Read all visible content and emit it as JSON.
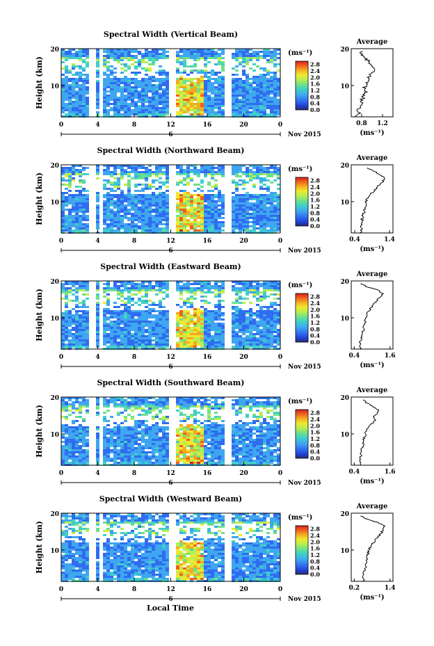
{
  "figure": {
    "bottom_xlabel": "Local Time"
  },
  "shared": {
    "ylabel": "Height (km)",
    "x_ticks": [
      "0",
      "4",
      "8",
      "12",
      "16",
      "20",
      "0"
    ],
    "y_ticks": [
      "20",
      "10"
    ],
    "date_day": "6",
    "date_label": "Nov 2015",
    "colorbar_unit": "(ms⁻¹)",
    "colorbar_ticks": [
      "2.8",
      "2.4",
      "2.0",
      "1.6",
      "1.2",
      "0.8",
      "0.4",
      "0.0"
    ],
    "avg_title": "Average",
    "avg_unit": "(ms⁻¹)",
    "avg_y_ticks": [
      "20",
      "10"
    ]
  },
  "colors": {
    "colormap": [
      "#2b2b6e",
      "#1f3fd0",
      "#2f6cf0",
      "#3fa6f0",
      "#3fd0c8",
      "#6fe08a",
      "#b8ee50",
      "#f0e830",
      "#f5a820",
      "#f06020",
      "#d02020"
    ]
  },
  "chart_data": [
    {
      "type": "heatmap",
      "title": "Spectral Width (Vertical Beam)",
      "x_range": [
        0,
        24
      ],
      "y_range": [
        1.5,
        20
      ],
      "color_range": [
        0.0,
        3.0
      ],
      "data_gaps_hours": [
        3.2,
        4.2,
        11.9,
        18.2
      ],
      "avg_x_ticks": [
        "0.8",
        "1.2"
      ],
      "avg_x_range": [
        0.6,
        1.4
      ],
      "average_profile": {
        "height_km": [
          1.5,
          2.5,
          3.5,
          4.5,
          5.5,
          6.5,
          7.5,
          8.5,
          9.5,
          10.5,
          11.5,
          12.5,
          13.5,
          14.5,
          15.5,
          16.5,
          17.5,
          18.5,
          19.5
        ],
        "value": [
          0.7,
          0.75,
          0.72,
          0.78,
          0.8,
          0.82,
          0.85,
          0.88,
          0.86,
          0.9,
          0.92,
          0.95,
          1.0,
          1.05,
          1.0,
          0.95,
          0.85,
          0.8,
          0.78
        ]
      }
    },
    {
      "type": "heatmap",
      "title": "Spectral Width (Northward Beam)",
      "x_range": [
        0,
        24
      ],
      "y_range": [
        1.5,
        20
      ],
      "color_range": [
        0.0,
        3.0
      ],
      "data_gaps_hours": [
        3.2,
        4.2,
        11.9,
        18.2
      ],
      "avg_x_ticks": [
        "0.4",
        "1.4"
      ],
      "avg_x_range": [
        0.3,
        1.5
      ],
      "average_profile": {
        "height_km": [
          1.5,
          2.5,
          3.5,
          4.5,
          5.5,
          6.5,
          7.5,
          8.5,
          9.5,
          10.5,
          11.5,
          12.5,
          13.5,
          14.5,
          15.5,
          16.5,
          17.5,
          18.5,
          19.5
        ],
        "value": [
          0.55,
          0.6,
          0.58,
          0.6,
          0.62,
          0.65,
          0.68,
          0.7,
          0.72,
          0.75,
          0.8,
          0.9,
          1.0,
          1.1,
          1.2,
          1.25,
          1.1,
          0.9,
          0.7
        ]
      }
    },
    {
      "type": "heatmap",
      "title": "Spectral Width (Eastward Beam)",
      "x_range": [
        0,
        24
      ],
      "y_range": [
        1.5,
        20
      ],
      "color_range": [
        0.0,
        3.0
      ],
      "data_gaps_hours": [
        3.2,
        4.2,
        11.9,
        18.2
      ],
      "avg_x_ticks": [
        "0.4",
        "1.6"
      ],
      "avg_x_range": [
        0.3,
        1.7
      ],
      "average_profile": {
        "height_km": [
          1.5,
          2.5,
          3.5,
          4.5,
          5.5,
          6.5,
          7.5,
          8.5,
          9.5,
          10.5,
          11.5,
          12.5,
          13.5,
          14.5,
          15.5,
          16.5,
          17.5,
          18.5,
          19.5
        ],
        "value": [
          0.6,
          0.62,
          0.6,
          0.65,
          0.68,
          0.7,
          0.72,
          0.75,
          0.78,
          0.8,
          0.85,
          0.95,
          1.05,
          1.15,
          1.25,
          1.35,
          1.2,
          0.8,
          0.6
        ]
      }
    },
    {
      "type": "heatmap",
      "title": "Spectral Width (Southward Beam)",
      "x_range": [
        0,
        24
      ],
      "y_range": [
        1.5,
        20
      ],
      "color_range": [
        0.0,
        3.0
      ],
      "data_gaps_hours": [
        3.2,
        4.2,
        11.9,
        18.2
      ],
      "avg_x_ticks": [
        "0.4",
        "1.6"
      ],
      "avg_x_range": [
        0.3,
        1.7
      ],
      "average_profile": {
        "height_km": [
          1.5,
          2.5,
          3.5,
          4.5,
          5.5,
          6.5,
          7.5,
          8.5,
          9.5,
          10.5,
          11.5,
          12.5,
          13.5,
          14.5,
          15.5,
          16.5,
          17.5,
          18.5,
          19.5
        ],
        "value": [
          0.62,
          0.6,
          0.6,
          0.62,
          0.65,
          0.68,
          0.7,
          0.72,
          0.75,
          0.8,
          0.85,
          0.95,
          1.1,
          1.05,
          1.15,
          1.2,
          1.0,
          0.8,
          0.7
        ]
      }
    },
    {
      "type": "heatmap",
      "title": "Spectral Width (Westward Beam)",
      "x_range": [
        0,
        24
      ],
      "y_range": [
        1.5,
        20
      ],
      "color_range": [
        0.0,
        3.0
      ],
      "data_gaps_hours": [
        3.2,
        4.2,
        11.9,
        18.2
      ],
      "avg_x_ticks": [
        "0.2",
        "1.4"
      ],
      "avg_x_range": [
        0.1,
        1.5
      ],
      "average_profile": {
        "height_km": [
          1.5,
          2.5,
          3.5,
          4.5,
          5.5,
          6.5,
          7.5,
          8.5,
          9.5,
          10.5,
          11.5,
          12.5,
          13.5,
          14.5,
          15.5,
          16.5,
          17.5,
          18.5,
          19.5
        ],
        "value": [
          0.5,
          0.52,
          0.5,
          0.55,
          0.58,
          0.6,
          0.62,
          0.65,
          0.68,
          0.72,
          0.8,
          0.9,
          1.0,
          1.1,
          1.15,
          1.2,
          1.0,
          0.6,
          0.4
        ]
      }
    }
  ]
}
